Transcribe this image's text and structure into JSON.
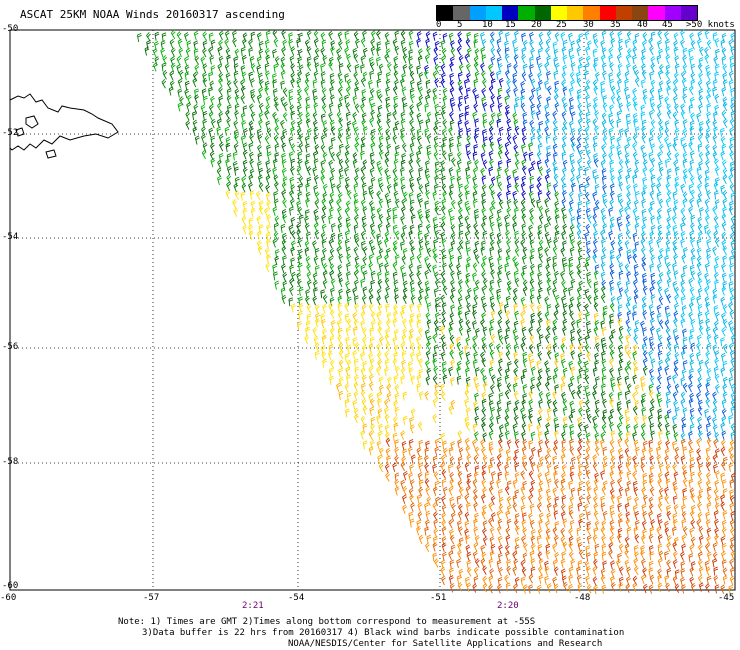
{
  "title": "ASCAT 25KM NOAA Winds 20160317 ascending",
  "legend": {
    "colors": [
      "#000000",
      "#666666",
      "#00a0ff",
      "#00c8ff",
      "#0000c0",
      "#00b000",
      "#006600",
      "#ffff00",
      "#ffc800",
      "#ff8000",
      "#ff0000",
      "#c04000",
      "#8b4513",
      "#ff00ff",
      "#a000ff",
      "#6600cc"
    ],
    "ticks": [
      "0",
      "5",
      "10",
      "15",
      "20",
      "25",
      "30",
      "35",
      "40",
      "45",
      ">50 knots"
    ]
  },
  "axes": {
    "lat_labels": [
      "-50",
      "-52",
      "-54",
      "-56",
      "-58",
      "-60"
    ],
    "lon_labels": [
      "-60",
      "-57",
      "-54",
      "-51",
      "-48",
      "-45"
    ]
  },
  "times": [
    "2:21",
    "2:20"
  ],
  "notes": {
    "line1": "Note: 1) Times are GMT 2)Times along bottom correspond to measurement at -55S",
    "line2": "3)Data buffer is 22 hrs from 20160317 4) Black wind barbs indicate possible contamination",
    "line3": "NOAA/NESDIS/Center for Satellite Applications and Research"
  }
}
